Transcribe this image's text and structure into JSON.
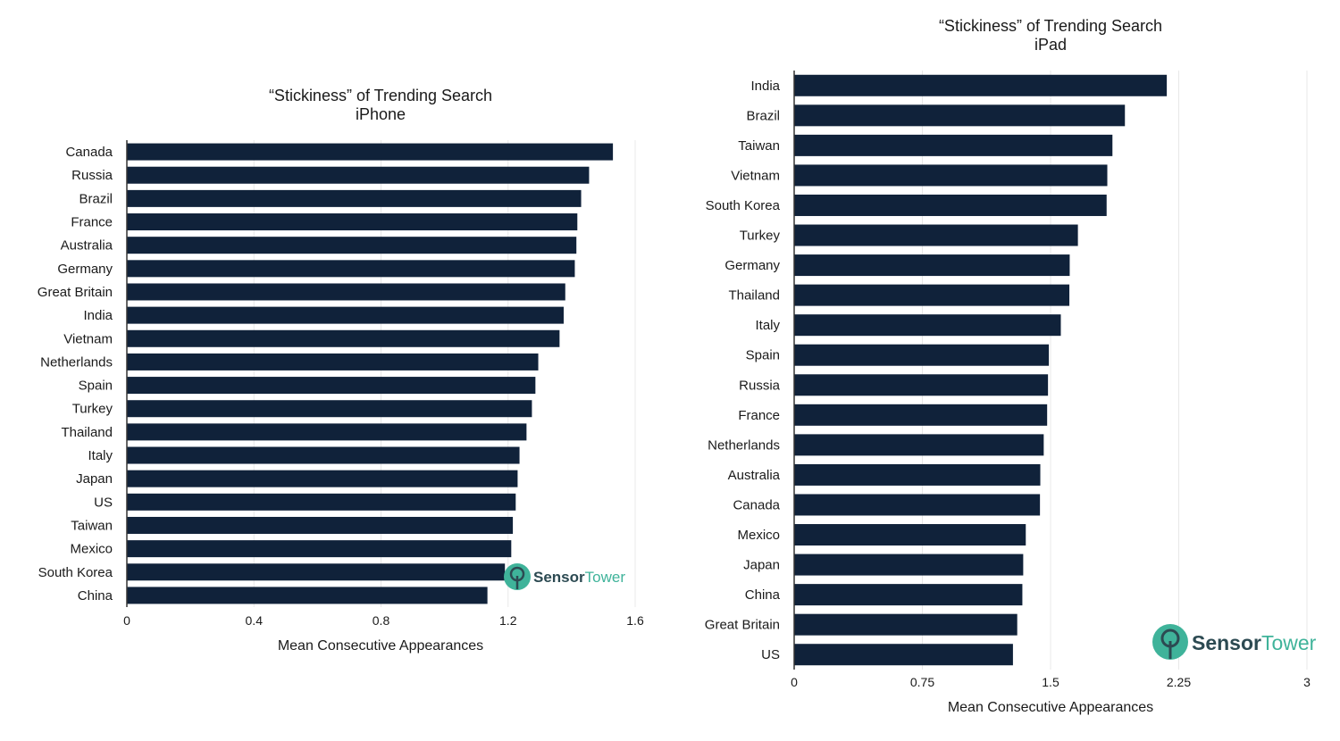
{
  "colors": {
    "bar": "#10223a",
    "grid": "#e8e8e8",
    "axis": "#333333",
    "logo_dark": "#2c4a52",
    "logo_teal": "#3fb39a"
  },
  "branding": {
    "name_part1": "Sensor",
    "name_part2": "Tower"
  },
  "chart_data": [
    {
      "type": "bar",
      "orientation": "horizontal",
      "title_line1": "“Stickiness” of Trending Search",
      "title_line2": "iPhone",
      "xlabel": "Mean Consecutive Appearances",
      "xlim": [
        0,
        1.6
      ],
      "xticks": [
        "0",
        "0.4",
        "0.8",
        "1.2",
        "1.6"
      ],
      "xtick_values": [
        0,
        0.4,
        0.8,
        1.2,
        1.6
      ],
      "grid": true,
      "categories": [
        "Canada",
        "Russia",
        "Brazil",
        "France",
        "Australia",
        "Germany",
        "Great Britain",
        "India",
        "Vietnam",
        "Netherlands",
        "Spain",
        "Turkey",
        "Thailand",
        "Italy",
        "Japan",
        "US",
        "Taiwan",
        "Mexico",
        "South Korea",
        "China"
      ],
      "values": [
        1.53,
        1.455,
        1.43,
        1.418,
        1.415,
        1.41,
        1.38,
        1.375,
        1.362,
        1.295,
        1.286,
        1.275,
        1.258,
        1.236,
        1.23,
        1.224,
        1.215,
        1.21,
        1.19,
        1.135
      ]
    },
    {
      "type": "bar",
      "orientation": "horizontal",
      "title_line1": "“Stickiness” of Trending Search",
      "title_line2": "iPad",
      "xlabel": "Mean Consecutive Appearances",
      "xlim": [
        0,
        3
      ],
      "xticks": [
        "0",
        "0.75",
        "1.5",
        "2.25",
        "3"
      ],
      "xtick_values": [
        0,
        0.75,
        1.5,
        2.25,
        3
      ],
      "grid": true,
      "categories": [
        "India",
        "Brazil",
        "Taiwan",
        "Vietnam",
        "South Korea",
        "Turkey",
        "Germany",
        "Thailand",
        "Italy",
        "Spain",
        "Russia",
        "France",
        "Netherlands",
        "Australia",
        "Canada",
        "Mexico",
        "Japan",
        "China",
        "Great Britain",
        "US"
      ],
      "values": [
        2.18,
        1.935,
        1.862,
        1.832,
        1.828,
        1.66,
        1.612,
        1.61,
        1.56,
        1.49,
        1.485,
        1.48,
        1.46,
        1.44,
        1.438,
        1.355,
        1.34,
        1.335,
        1.305,
        1.28
      ]
    }
  ]
}
